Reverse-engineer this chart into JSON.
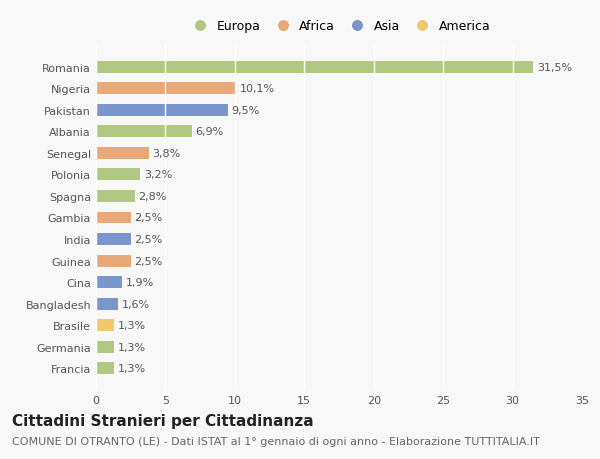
{
  "categories": [
    "Francia",
    "Germania",
    "Brasile",
    "Bangladesh",
    "Cina",
    "Guinea",
    "India",
    "Gambia",
    "Spagna",
    "Polonia",
    "Senegal",
    "Albania",
    "Pakistan",
    "Nigeria",
    "Romania"
  ],
  "values": [
    1.3,
    1.3,
    1.3,
    1.6,
    1.9,
    2.5,
    2.5,
    2.5,
    2.8,
    3.2,
    3.8,
    6.9,
    9.5,
    10.1,
    31.5
  ],
  "labels": [
    "1,3%",
    "1,3%",
    "1,3%",
    "1,6%",
    "1,9%",
    "2,5%",
    "2,5%",
    "2,5%",
    "2,8%",
    "3,2%",
    "3,8%",
    "6,9%",
    "9,5%",
    "10,1%",
    "31,5%"
  ],
  "colors": [
    "#b0c882",
    "#b0c882",
    "#f0c96e",
    "#7b96cc",
    "#7b96cc",
    "#e8a878",
    "#7b96cc",
    "#e8a878",
    "#b0c882",
    "#b0c882",
    "#e8a878",
    "#b0c882",
    "#7b96cc",
    "#e8a878",
    "#b0c882"
  ],
  "legend_labels": [
    "Europa",
    "Africa",
    "Asia",
    "America"
  ],
  "legend_colors": [
    "#b0c882",
    "#e8a878",
    "#7b96cc",
    "#f0c96e"
  ],
  "title": "Cittadini Stranieri per Cittadinanza",
  "subtitle": "COMUNE DI OTRANTO (LE) - Dati ISTAT al 1° gennaio di ogni anno - Elaborazione TUTTITALIA.IT",
  "xlim": [
    0,
    35
  ],
  "xticks": [
    0,
    5,
    10,
    15,
    20,
    25,
    30,
    35
  ],
  "background_color": "#f8f8f8",
  "plot_bg_color": "#f8f8f8",
  "bar_height": 0.55,
  "grid_color": "#ffffff",
  "title_fontsize": 11,
  "subtitle_fontsize": 8,
  "label_fontsize": 8,
  "tick_fontsize": 8,
  "legend_fontsize": 9
}
